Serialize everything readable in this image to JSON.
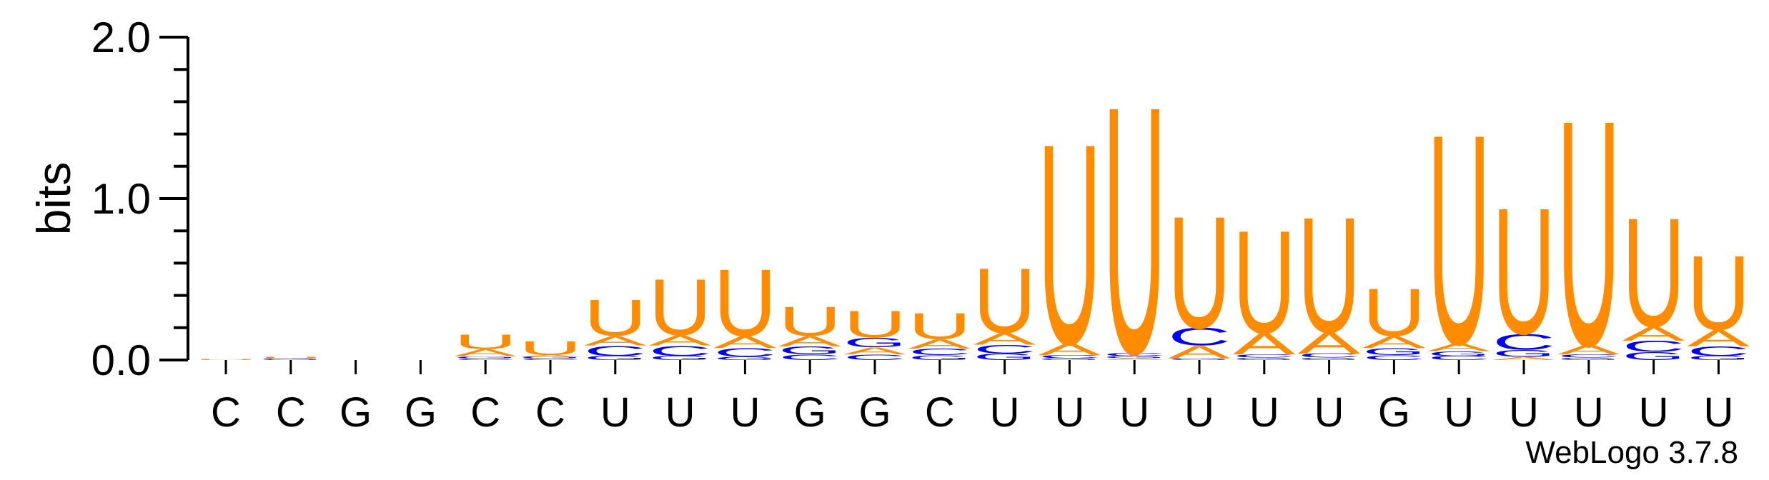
{
  "chart_data": {
    "type": "sequence-logo",
    "ylabel": "bits",
    "ylim": [
      0,
      2.0
    ],
    "yticks": [
      {
        "value": 0.0,
        "label": "0.0"
      },
      {
        "value": 1.0,
        "label": "1.0"
      },
      {
        "value": 2.0,
        "label": "2.0"
      }
    ],
    "minor_tick_step": 0.2,
    "credit": "WebLogo 3.7.8",
    "colors": {
      "U": "#ff8c00",
      "A": "#ff8c00",
      "C": "#0000ff",
      "G": "#0000ff"
    },
    "positions": [
      {
        "label": "C",
        "stack": [
          {
            "l": "U",
            "h": 0.006
          }
        ]
      },
      {
        "label": "C",
        "stack": [
          {
            "l": "G",
            "h": 0.012
          },
          {
            "l": "U",
            "h": 0.008
          }
        ]
      },
      {
        "label": "G",
        "stack": []
      },
      {
        "label": "G",
        "stack": []
      },
      {
        "label": "C",
        "stack": [
          {
            "l": "C",
            "h": 0.012
          },
          {
            "l": "G",
            "h": 0.012
          },
          {
            "l": "A",
            "h": 0.045
          },
          {
            "l": "U",
            "h": 0.09
          }
        ]
      },
      {
        "label": "C",
        "stack": [
          {
            "l": "C",
            "h": 0.01
          },
          {
            "l": "G",
            "h": 0.01
          },
          {
            "l": "A",
            "h": 0.012
          },
          {
            "l": "U",
            "h": 0.088
          }
        ]
      },
      {
        "label": "U",
        "stack": [
          {
            "l": "G",
            "h": 0.025
          },
          {
            "l": "C",
            "h": 0.065
          },
          {
            "l": "A",
            "h": 0.06
          },
          {
            "l": "U",
            "h": 0.23
          }
        ]
      },
      {
        "label": "U",
        "stack": [
          {
            "l": "G",
            "h": 0.025
          },
          {
            "l": "C",
            "h": 0.065
          },
          {
            "l": "A",
            "h": 0.065
          },
          {
            "l": "U",
            "h": 0.355
          }
        ]
      },
      {
        "label": "U",
        "stack": [
          {
            "l": "G",
            "h": 0.02
          },
          {
            "l": "C",
            "h": 0.055
          },
          {
            "l": "A",
            "h": 0.075
          },
          {
            "l": "U",
            "h": 0.425
          }
        ]
      },
      {
        "label": "G",
        "stack": [
          {
            "l": "C",
            "h": 0.035
          },
          {
            "l": "G",
            "h": 0.05
          },
          {
            "l": "A",
            "h": 0.065
          },
          {
            "l": "U",
            "h": 0.185
          }
        ]
      },
      {
        "label": "G",
        "stack": [
          {
            "l": "C",
            "h": 0.035
          },
          {
            "l": "A",
            "h": 0.045
          },
          {
            "l": "G",
            "h": 0.06
          },
          {
            "l": "U",
            "h": 0.17
          }
        ]
      },
      {
        "label": "C",
        "stack": [
          {
            "l": "G",
            "h": 0.03
          },
          {
            "l": "C",
            "h": 0.04
          },
          {
            "l": "A",
            "h": 0.06
          },
          {
            "l": "U",
            "h": 0.165
          }
        ]
      },
      {
        "label": "U",
        "stack": [
          {
            "l": "G",
            "h": 0.04
          },
          {
            "l": "C",
            "h": 0.055
          },
          {
            "l": "A",
            "h": 0.075
          },
          {
            "l": "U",
            "h": 0.41
          }
        ]
      },
      {
        "label": "U",
        "stack": [
          {
            "l": "G",
            "h": 0.01
          },
          {
            "l": "C",
            "h": 0.02
          },
          {
            "l": "A",
            "h": 0.075
          },
          {
            "l": "U",
            "h": 1.27
          }
        ]
      },
      {
        "label": "U",
        "stack": [
          {
            "l": "A",
            "h": 0.01
          },
          {
            "l": "G",
            "h": 0.015
          },
          {
            "l": "C",
            "h": 0.02
          },
          {
            "l": "U",
            "h": 1.57
          }
        ]
      },
      {
        "label": "U",
        "stack": [
          {
            "l": "G",
            "h": 0.01
          },
          {
            "l": "A",
            "h": 0.08
          },
          {
            "l": "C",
            "h": 0.11
          },
          {
            "l": "U",
            "h": 0.71
          }
        ]
      },
      {
        "label": "U",
        "stack": [
          {
            "l": "G",
            "h": 0.015
          },
          {
            "l": "C",
            "h": 0.02
          },
          {
            "l": "A",
            "h": 0.135
          },
          {
            "l": "U",
            "h": 0.65
          }
        ]
      },
      {
        "label": "U",
        "stack": [
          {
            "l": "G",
            "h": 0.015
          },
          {
            "l": "C",
            "h": 0.025
          },
          {
            "l": "A",
            "h": 0.135
          },
          {
            "l": "U",
            "h": 0.73
          }
        ]
      },
      {
        "label": "G",
        "stack": [
          {
            "l": "C",
            "h": 0.03
          },
          {
            "l": "G",
            "h": 0.045
          },
          {
            "l": "A",
            "h": 0.075
          },
          {
            "l": "U",
            "h": 0.3
          }
        ]
      },
      {
        "label": "U",
        "stack": [
          {
            "l": "C",
            "h": 0.025
          },
          {
            "l": "G",
            "h": 0.03
          },
          {
            "l": "A",
            "h": 0.05
          },
          {
            "l": "U",
            "h": 1.33
          }
        ]
      },
      {
        "label": "U",
        "stack": [
          {
            "l": "A",
            "h": 0.02
          },
          {
            "l": "G",
            "h": 0.045
          },
          {
            "l": "C",
            "h": 0.1
          },
          {
            "l": "U",
            "h": 0.8
          }
        ]
      },
      {
        "label": "U",
        "stack": [
          {
            "l": "G",
            "h": 0.015
          },
          {
            "l": "C",
            "h": 0.02
          },
          {
            "l": "A",
            "h": 0.06
          },
          {
            "l": "U",
            "h": 1.43
          }
        ]
      },
      {
        "label": "U",
        "stack": [
          {
            "l": "G",
            "h": 0.05
          },
          {
            "l": "C",
            "h": 0.07
          },
          {
            "l": "A",
            "h": 0.09
          },
          {
            "l": "U",
            "h": 0.69
          }
        ]
      },
      {
        "label": "U",
        "stack": [
          {
            "l": "G",
            "h": 0.025
          },
          {
            "l": "C",
            "h": 0.06
          },
          {
            "l": "A",
            "h": 0.105
          },
          {
            "l": "U",
            "h": 0.47
          }
        ]
      }
    ]
  }
}
